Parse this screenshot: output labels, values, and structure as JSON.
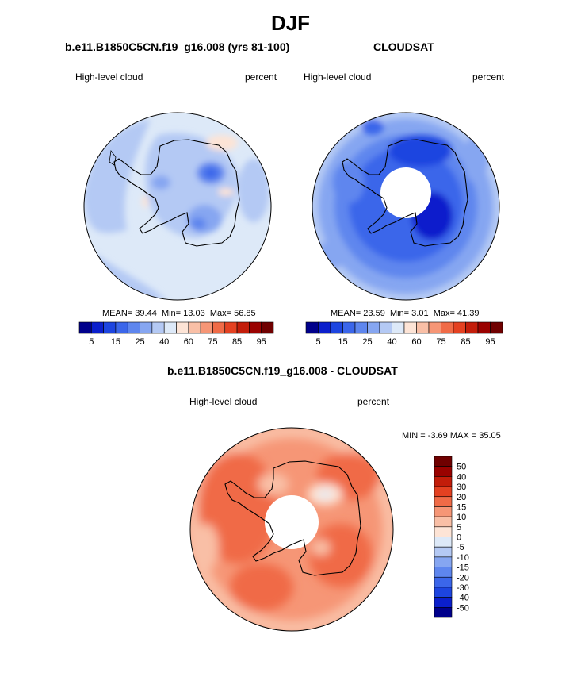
{
  "figure": {
    "title": "DJF"
  },
  "panels": {
    "model": {
      "title": "b.e11.B1850C5CN.f19_g16.008 (yrs 81-100)",
      "left_label": "High-level cloud",
      "right_label": "percent",
      "stats": {
        "mean_label": "MEAN=",
        "mean": "39.44",
        "min_label": "Min=",
        "min": "13.03",
        "max_label": "Max=",
        "max": "56.85"
      }
    },
    "obs": {
      "title": "CLOUDSAT",
      "left_label": "High-level cloud",
      "right_label": "percent",
      "stats": {
        "mean_label": "MEAN=",
        "mean": "23.59",
        "min_label": "Min=",
        "min": "3.01",
        "max_label": "Max=",
        "max": "41.39"
      }
    },
    "diff": {
      "title": "b.e11.B1850C5CN.f19_g16.008 - CLOUDSAT",
      "left_label": "High-level cloud",
      "right_label": "percent",
      "stats": {
        "min_label": "MIN =",
        "min": "-3.69",
        "max_label": "MAX =",
        "max": "35.05"
      }
    }
  },
  "colors": {
    "abs_scale": [
      "#00008b",
      "#0b1fcc",
      "#1d45e0",
      "#3b66ea",
      "#5e86ee",
      "#86a6f1",
      "#b4c9f4",
      "#dde9f8",
      "#fde4d6",
      "#f9bfa6",
      "#f69676",
      "#f06b47",
      "#e44121",
      "#c31d0a",
      "#9a0200",
      "#700000"
    ],
    "diff_scale": [
      "#00008b",
      "#0b1fcc",
      "#1d45e0",
      "#3b66ea",
      "#5e86ee",
      "#86a6f1",
      "#b4c9f4",
      "#dde9f8",
      "#fde4d6",
      "#f9bfa6",
      "#f69676",
      "#f06b47",
      "#e44121",
      "#c31d0a",
      "#9a0200",
      "#700000"
    ]
  },
  "chart_data": [
    {
      "type": "heatmap",
      "title": "b.e11.B1850C5CN.f19_g16.008 (yrs 81-100)",
      "variable": "High-level cloud",
      "units": "percent",
      "projection": "south-polar-stereographic",
      "colorbar_levels": [
        5,
        10,
        15,
        20,
        25,
        30,
        35,
        40,
        50,
        60,
        70,
        75,
        80,
        85,
        90,
        95
      ],
      "colorbar_tick_labels": [
        "5",
        "15",
        "25",
        "40",
        "60",
        "75",
        "85",
        "95"
      ],
      "mean": 39.44,
      "min": 13.03,
      "max": 56.85
    },
    {
      "type": "heatmap",
      "title": "CLOUDSAT",
      "variable": "High-level cloud",
      "units": "percent",
      "projection": "south-polar-stereographic",
      "colorbar_levels": [
        5,
        10,
        15,
        20,
        25,
        30,
        35,
        40,
        50,
        60,
        70,
        75,
        80,
        85,
        90,
        95
      ],
      "colorbar_tick_labels": [
        "5",
        "15",
        "25",
        "40",
        "60",
        "75",
        "85",
        "95"
      ],
      "mean": 23.59,
      "min": 3.01,
      "max": 41.39
    },
    {
      "type": "heatmap",
      "title": "b.e11.B1850C5CN.f19_g16.008 - CLOUDSAT",
      "variable": "High-level cloud",
      "units": "percent",
      "projection": "south-polar-stereographic",
      "colorbar_levels": [
        -50,
        -40,
        -30,
        -20,
        -15,
        -10,
        -5,
        0,
        5,
        10,
        15,
        20,
        30,
        40,
        50
      ],
      "colorbar_tick_labels": [
        "50",
        "40",
        "30",
        "20",
        "15",
        "10",
        "5",
        "0",
        "-5",
        "-10",
        "-15",
        "-20",
        "-30",
        "-40",
        "-50"
      ],
      "min": -3.69,
      "max": 35.05
    }
  ]
}
